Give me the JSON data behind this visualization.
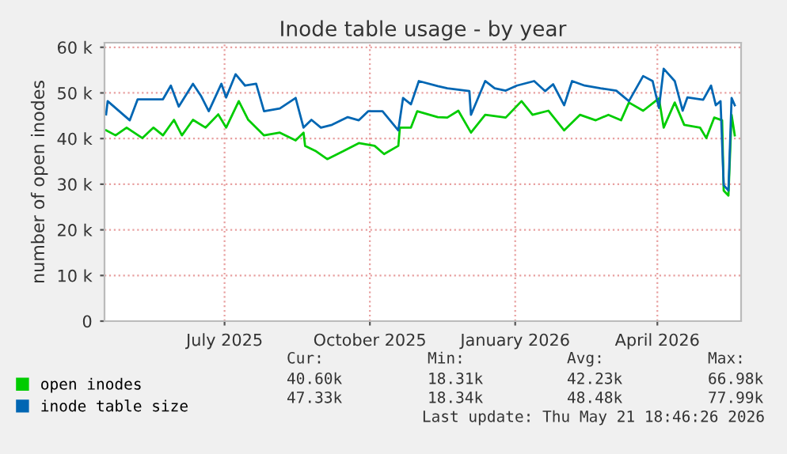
{
  "chart_data": {
    "type": "line",
    "title": "Inode table usage - by year",
    "ylabel": "number of open inodes",
    "xlim": [
      "2025-04-16",
      "2026-05-24"
    ],
    "ylim": [
      0,
      61000
    ],
    "xticks": [
      {
        "value": "2025-07-01",
        "label": "July 2025"
      },
      {
        "value": "2025-10-01",
        "label": "October 2025"
      },
      {
        "value": "2026-01-01",
        "label": "January 2026"
      },
      {
        "value": "2026-04-01",
        "label": "April 2026"
      }
    ],
    "yticks": [
      0,
      {
        "value": 10000,
        "label": "10 k"
      },
      {
        "value": 20000,
        "label": "20 k"
      },
      {
        "value": 30000,
        "label": "30 k"
      },
      {
        "value": 40000,
        "label": "40 k"
      },
      {
        "value": 50000,
        "label": "50 k"
      },
      {
        "value": 60000,
        "label": "60 k"
      }
    ],
    "grid": true,
    "legend": "bottom",
    "marker": "none",
    "line_style": "solid",
    "series": [
      {
        "name": "open inodes",
        "color": "#00cc00",
        "x": [
          "2025-04-17",
          "2025-04-23",
          "2025-04-30",
          "2025-05-10",
          "2025-05-17",
          "2025-05-23",
          "2025-05-30",
          "2025-06-04",
          "2025-06-11",
          "2025-06-19",
          "2025-06-27",
          "2025-07-02",
          "2025-07-10",
          "2025-07-16",
          "2025-07-26",
          "2025-08-05",
          "2025-08-15",
          "2025-08-20",
          "2025-08-21",
          "2025-08-28",
          "2025-09-04",
          "2025-09-14",
          "2025-09-24",
          "2025-10-04",
          "2025-10-10",
          "2025-10-19",
          "2025-10-20",
          "2025-10-27",
          "2025-10-31",
          "2025-11-13",
          "2025-11-19",
          "2025-11-26",
          "2025-12-04",
          "2025-12-13",
          "2025-12-26",
          "2026-01-05",
          "2026-01-12",
          "2026-01-22",
          "2026-02-01",
          "2026-02-11",
          "2026-02-21",
          "2026-03-01",
          "2026-03-09",
          "2026-03-14",
          "2026-03-23",
          "2026-04-02",
          "2026-04-05",
          "2026-04-12",
          "2026-04-18",
          "2026-04-28",
          "2026-05-02",
          "2026-05-07",
          "2026-05-12",
          "2026-05-13",
          "2026-05-16",
          "2026-05-18",
          "2026-05-20"
        ],
        "values": [
          41800,
          40700,
          42400,
          40100,
          42400,
          40700,
          44100,
          40700,
          44100,
          42400,
          45300,
          42400,
          48200,
          44100,
          40700,
          41300,
          39600,
          41300,
          38400,
          37200,
          35500,
          37200,
          39000,
          38400,
          36600,
          38400,
          42400,
          42400,
          46000,
          44700,
          44600,
          46100,
          41300,
          45200,
          44600,
          48200,
          45200,
          46100,
          41800,
          45200,
          44000,
          45200,
          44000,
          47900,
          46100,
          48800,
          42400,
          47900,
          43000,
          42400,
          40100,
          44600,
          44000,
          28600,
          27500,
          45200,
          40700
        ]
      },
      {
        "name": "inode table size",
        "color": "#0066b3",
        "x": [
          "2025-04-17",
          "2025-04-18",
          "2025-05-02",
          "2025-05-07",
          "2025-05-23",
          "2025-05-28",
          "2025-06-02",
          "2025-06-11",
          "2025-06-16",
          "2025-06-21",
          "2025-06-29",
          "2025-07-02",
          "2025-07-08",
          "2025-07-14",
          "2025-07-21",
          "2025-07-26",
          "2025-08-05",
          "2025-08-15",
          "2025-08-20",
          "2025-08-25",
          "2025-08-31",
          "2025-09-07",
          "2025-09-17",
          "2025-09-24",
          "2025-09-30",
          "2025-10-09",
          "2025-10-19",
          "2025-10-22",
          "2025-10-27",
          "2025-11-01",
          "2025-11-13",
          "2025-11-19",
          "2025-12-03",
          "2025-12-04",
          "2025-12-13",
          "2025-12-19",
          "2025-12-26",
          "2026-01-02",
          "2026-01-13",
          "2026-01-20",
          "2026-01-25",
          "2026-02-01",
          "2026-02-06",
          "2026-02-14",
          "2026-02-24",
          "2026-03-06",
          "2026-03-14",
          "2026-03-23",
          "2026-03-29",
          "2026-04-02",
          "2026-04-05",
          "2026-04-12",
          "2026-04-17",
          "2026-04-20",
          "2026-04-30",
          "2026-05-05",
          "2026-05-08",
          "2026-05-11",
          "2026-05-13",
          "2026-05-16",
          "2026-05-18",
          "2026-05-20"
        ],
        "values": [
          45300,
          48200,
          44000,
          48600,
          48600,
          51600,
          47000,
          52000,
          49400,
          46000,
          52000,
          49000,
          54100,
          51600,
          52000,
          46000,
          46600,
          48900,
          42400,
          44100,
          42400,
          43000,
          44700,
          44000,
          46000,
          46000,
          41800,
          48900,
          47500,
          52600,
          51500,
          51000,
          50400,
          45200,
          52600,
          51000,
          50500,
          51600,
          52600,
          50400,
          51900,
          47300,
          52600,
          51600,
          51000,
          50500,
          48200,
          53700,
          52600,
          46700,
          55300,
          52600,
          46100,
          49000,
          48500,
          51600,
          47300,
          48200,
          29800,
          28600,
          48900,
          47300
        ]
      }
    ],
    "annotations": [
      "Cur:",
      "Min:",
      "Avg:",
      "Max:",
      "40.60k",
      "18.31k",
      "42.23k",
      "66.98k",
      "47.33k",
      "18.34k",
      "48.48k",
      "77.99k",
      "Last update: Thu May 21 18:46:26 2026"
    ]
  }
}
